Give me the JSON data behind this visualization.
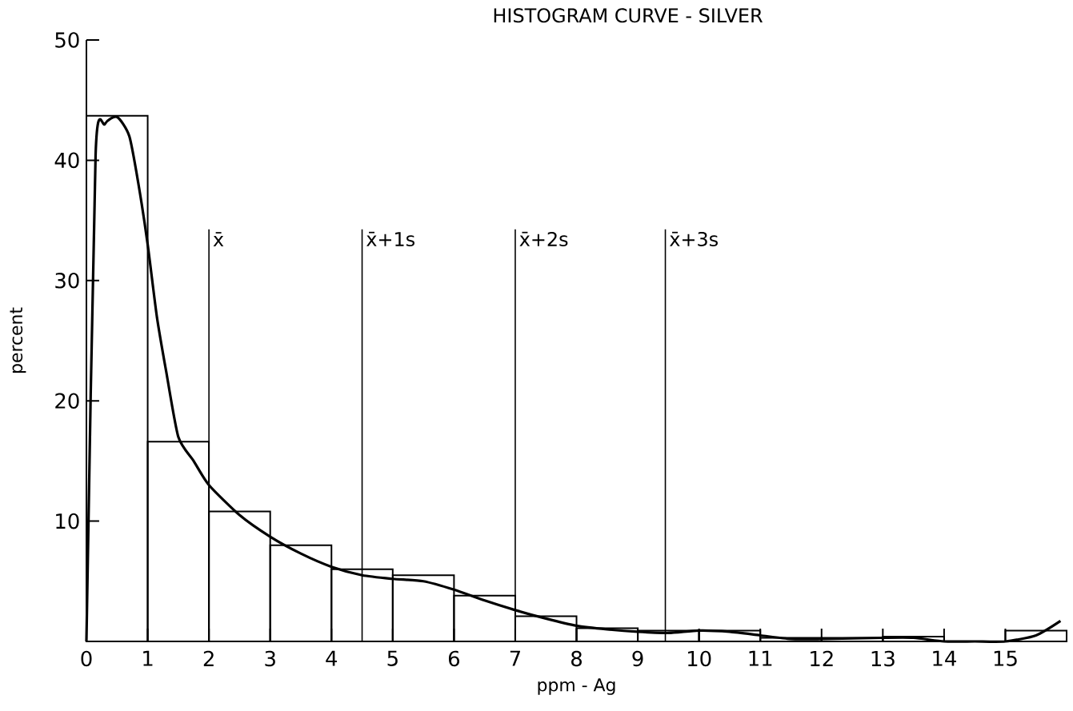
{
  "chart_data": {
    "type": "histogram",
    "title": "HISTOGRAM CURVE  -  SILVER",
    "xlabel": "ppm  -  Ag",
    "ylabel": "percent",
    "bins": [
      0,
      1,
      2,
      3,
      4,
      5,
      6,
      7,
      8,
      9,
      10,
      11,
      12,
      13,
      14,
      15,
      16
    ],
    "values": [
      43.7,
      16.6,
      10.8,
      8.0,
      6.0,
      5.5,
      3.8,
      2.1,
      1.1,
      0.9,
      0.9,
      0.3,
      0.3,
      0.4,
      0,
      0.9
    ],
    "color": "#000000",
    "series": [
      {
        "type": "line",
        "color": "#000000",
        "x": [
          0,
          0.15,
          0.3,
          0.5,
          0.7,
          0.85,
          1,
          1.15,
          1.3,
          1.5,
          1.75,
          2,
          2.5,
          3,
          3.5,
          4,
          4.5,
          5,
          5.5,
          6,
          6.5,
          7,
          7.5,
          8,
          8.5,
          9,
          9.5,
          10,
          10.5,
          11,
          11.5,
          12,
          13,
          13.5,
          14,
          14.5,
          15,
          15.5,
          15.9
        ],
        "values": [
          0,
          40.5,
          43,
          43.6,
          42,
          38,
          33,
          27,
          22.5,
          17,
          15,
          13,
          10.5,
          8.7,
          7.3,
          6.2,
          5.5,
          5.2,
          5.0,
          4.3,
          3.4,
          2.6,
          1.9,
          1.3,
          1.0,
          0.8,
          0.7,
          0.9,
          0.8,
          0.5,
          0.2,
          0.2,
          0.3,
          0.3,
          0,
          0,
          0,
          0.5,
          1.7
        ]
      }
    ],
    "xlim": [
      0,
      16
    ],
    "ylim": [
      0,
      50
    ],
    "xticks": [
      0,
      1,
      2,
      3,
      4,
      5,
      6,
      7,
      8,
      9,
      10,
      11,
      12,
      13,
      14,
      15
    ],
    "yticks": [
      10,
      20,
      30,
      40,
      50
    ],
    "ref_lines": [
      {
        "axis": "x",
        "value": 2,
        "label": "x̄"
      },
      {
        "axis": "x",
        "value": 4.5,
        "label": "x̄+1s"
      },
      {
        "axis": "x",
        "value": 7,
        "label": "x̄+2s"
      },
      {
        "axis": "x",
        "value": 9.45,
        "label": "x̄+3s"
      }
    ],
    "data_labels": false
  }
}
